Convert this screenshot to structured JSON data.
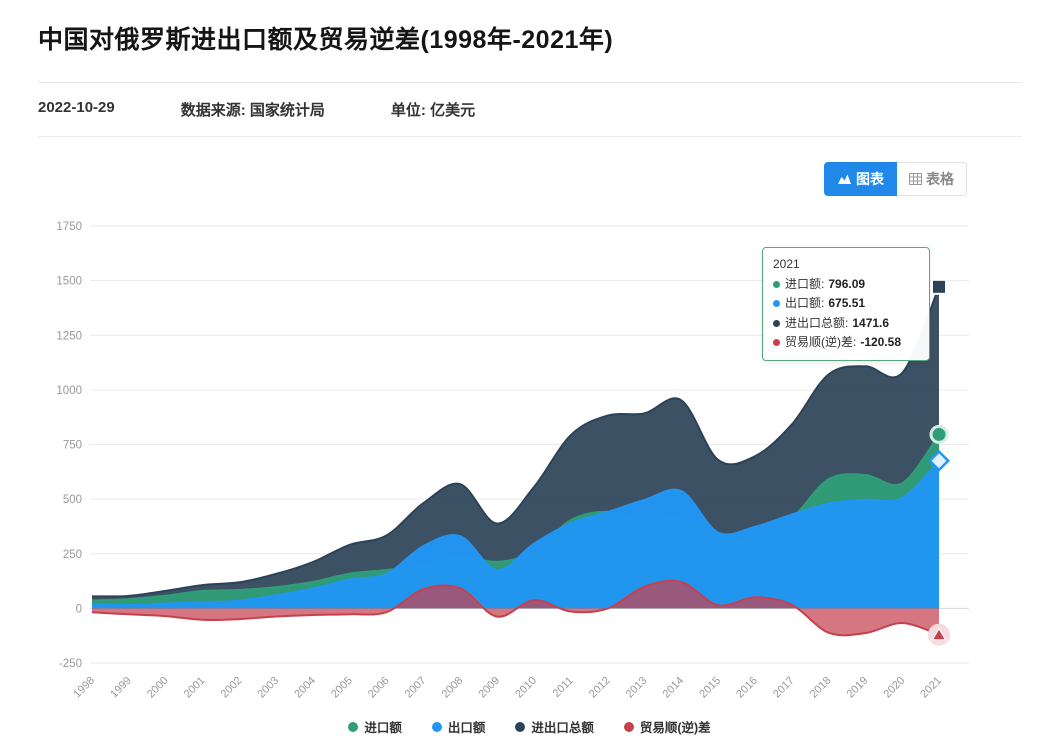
{
  "page": {
    "title": "中国对俄罗斯进出口额及贸易逆差(1998年-2021年)",
    "date": "2022-10-29",
    "source": "数据来源: 国家统计局",
    "unit": "单位: 亿美元"
  },
  "toggle": {
    "chart": "图表",
    "table": "表格"
  },
  "tooltip": {
    "year": "2021",
    "rows": [
      {
        "label": "进口额:",
        "value": "796.09"
      },
      {
        "label": "出口额:",
        "value": "675.51"
      },
      {
        "label": "进出口总额:",
        "value": "1471.6"
      },
      {
        "label": "贸易顺(逆)差:",
        "value": "-120.58"
      }
    ]
  },
  "chart_data": {
    "type": "area",
    "title": "中国对俄罗斯进出口额及贸易逆差(1998年-2021年)",
    "unit": "亿美元",
    "x": [
      1998,
      1999,
      2000,
      2001,
      2002,
      2003,
      2004,
      2005,
      2006,
      2007,
      2008,
      2009,
      2010,
      2011,
      2012,
      2013,
      2014,
      2015,
      2016,
      2017,
      2018,
      2019,
      2020,
      2021
    ],
    "series": [
      {
        "name": "进口额",
        "color": "#2f9e77",
        "marker": "circle",
        "values": [
          36.4,
          42.2,
          57.7,
          79.6,
          84.1,
          97.3,
          121.3,
          158.9,
          175.5,
          196.9,
          238.3,
          212.8,
          258.6,
          403.5,
          441.5,
          396.3,
          416.1,
          332.6,
          322.6,
          412.2,
          590.8,
          610.5,
          572.4,
          796.09
        ]
      },
      {
        "name": "出口额",
        "color": "#2196f3",
        "marker": "diamond",
        "values": [
          18.4,
          15.0,
          22.3,
          27.1,
          35.2,
          60.3,
          91.0,
          132.1,
          158.3,
          284.9,
          330.1,
          175.1,
          296.1,
          389.0,
          440.6,
          495.9,
          536.8,
          347.3,
          373.3,
          429.1,
          479.7,
          497.5,
          505.3,
          675.51
        ]
      },
      {
        "name": "进出口总额",
        "color": "#2c4257",
        "marker": "square",
        "values": [
          54.8,
          57.2,
          80.0,
          106.7,
          119.3,
          157.6,
          212.3,
          291.0,
          333.8,
          481.8,
          568.4,
          387.9,
          554.7,
          792.5,
          882.1,
          892.2,
          952.9,
          679.9,
          695.9,
          841.3,
          1070.5,
          1108.0,
          1077.7,
          1471.6
        ]
      },
      {
        "name": "贸易顺(逆)差",
        "color": "#c64150",
        "marker": "triangle",
        "values": [
          -18.0,
          -27.2,
          -35.4,
          -52.5,
          -48.9,
          -37.0,
          -30.3,
          -26.8,
          -17.2,
          88.0,
          91.8,
          -37.7,
          37.5,
          -14.5,
          -0.9,
          99.6,
          120.7,
          14.7,
          50.7,
          16.9,
          -111.1,
          -113.0,
          -67.1,
          -120.58
        ]
      }
    ],
    "xlabel": "",
    "ylabel": "",
    "ylim": [
      -250,
      1750
    ],
    "ytick_step": 250,
    "grid": true,
    "legend_position": "bottom",
    "draw_order": [
      2,
      0,
      1,
      3
    ]
  }
}
